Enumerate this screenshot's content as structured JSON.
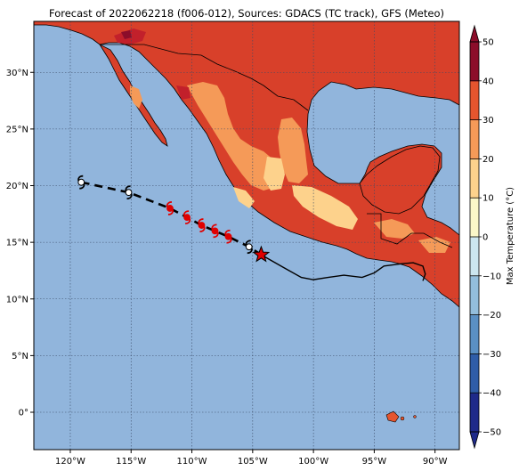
{
  "title": "Forecast of 2022062218 (f006-012), Sources: GDACS (TC track), GFS (Meteo)",
  "map": {
    "lon_range": [
      -123,
      -88
    ],
    "lat_range": [
      -3.3,
      34.5
    ],
    "lon_ticks": [
      {
        "value": -120,
        "label": "120°W"
      },
      {
        "value": -115,
        "label": "115°W"
      },
      {
        "value": -110,
        "label": "110°W"
      },
      {
        "value": -105,
        "label": "105°W"
      },
      {
        "value": -100,
        "label": "100°W"
      },
      {
        "value": -95,
        "label": "95°W"
      },
      {
        "value": -90,
        "label": "90°W"
      }
    ],
    "lat_ticks": [
      {
        "value": 30,
        "label": "30°N"
      },
      {
        "value": 25,
        "label": "25°N"
      },
      {
        "value": 20,
        "label": "20°N"
      },
      {
        "value": 15,
        "label": "15°N"
      },
      {
        "value": 10,
        "label": "10°N"
      },
      {
        "value": 5,
        "label": "5°N"
      },
      {
        "value": 0,
        "label": "0°"
      }
    ],
    "gridlines": true,
    "ocean_color": "#91b5dc"
  },
  "colorbar": {
    "label": "Max Temperature (°C)",
    "ticks": [
      "50",
      "40",
      "30",
      "20",
      "10",
      "0",
      "−10",
      "−20",
      "−30",
      "−40",
      "−50"
    ],
    "levels": [
      -50,
      -40,
      -30,
      -20,
      -10,
      0,
      10,
      20,
      30,
      40,
      50
    ],
    "colors": [
      "#1f2a8a",
      "#2f5da8",
      "#5a90c4",
      "#93bedc",
      "#cce6ef",
      "#fbf7c8",
      "#fdd28c",
      "#f59a58",
      "#e5552e",
      "#c2202b",
      "#8c0d2a"
    ],
    "extend": "both"
  },
  "tc_track": {
    "storm_marker_color_past": "#ffffff",
    "storm_marker_color_forecast": "#e00000",
    "current_position_marker": "star",
    "points": [
      {
        "lon": -104.3,
        "lat": 13.9,
        "kind": "current"
      },
      {
        "lon": -105.3,
        "lat": 14.6,
        "kind": "forecast"
      },
      {
        "lon": -107.0,
        "lat": 15.5,
        "kind": "forecast"
      },
      {
        "lon": -108.1,
        "lat": 16.0,
        "kind": "forecast"
      },
      {
        "lon": -109.2,
        "lat": 16.5,
        "kind": "forecast"
      },
      {
        "lon": -110.4,
        "lat": 17.2,
        "kind": "forecast"
      },
      {
        "lon": -111.8,
        "lat": 18.0,
        "kind": "forecast"
      },
      {
        "lon": -115.2,
        "lat": 19.4,
        "kind": "forecast"
      },
      {
        "lon": -119.1,
        "lat": 20.3,
        "kind": "forecast"
      }
    ],
    "past_track": [
      [
        -104.3,
        13.9
      ],
      [
        -102.5,
        12.8
      ],
      [
        -101.0,
        11.9
      ],
      [
        -100.0,
        11.7
      ],
      [
        -98.8,
        11.9
      ],
      [
        -97.5,
        12.1
      ],
      [
        -96.0,
        11.9
      ],
      [
        -95.0,
        12.3
      ],
      [
        -94.2,
        12.9
      ],
      [
        -92.8,
        13.1
      ],
      [
        -91.8,
        13.2
      ],
      [
        -91.0,
        12.9
      ],
      [
        -90.8,
        12.2
      ],
      [
        -91.0,
        11.6
      ]
    ]
  }
}
